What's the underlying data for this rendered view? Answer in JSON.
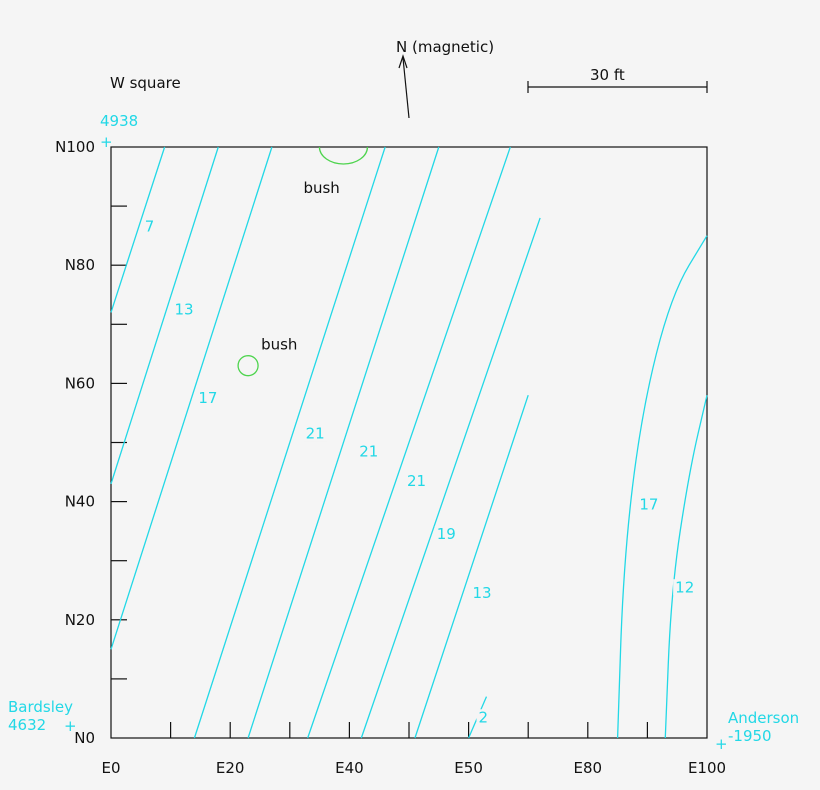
{
  "chart_data": {
    "type": "line",
    "title": "W square",
    "north_label": "N (magnetic)",
    "scale_label": "30 ft",
    "x_ticks": [
      "E0",
      "E20",
      "E40",
      "E50",
      "E80",
      "E100"
    ],
    "y_ticks": [
      "N0",
      "N20",
      "N40",
      "N60",
      "N80",
      "N100"
    ],
    "xlim": [
      0,
      100
    ],
    "ylim": [
      0,
      100
    ],
    "benchmarks": [
      {
        "name": "4938",
        "x": -1,
        "y": 101
      },
      {
        "name": "Bardsley",
        "value": "4632",
        "x": -7,
        "y": 2
      },
      {
        "name": "Anderson",
        "value": "-1950",
        "x": 102,
        "y": -1
      }
    ],
    "features": [
      {
        "name": "bush",
        "x": 23,
        "y": 63,
        "type": "circle-small"
      },
      {
        "name": "bush",
        "x": 39,
        "y": 100,
        "type": "semicircle"
      }
    ],
    "contours": [
      {
        "label": "7",
        "points": [
          [
            0,
            72
          ],
          [
            9,
            100
          ]
        ],
        "label_at": [
          7,
          86
        ]
      },
      {
        "label": "13",
        "points": [
          [
            0,
            43
          ],
          [
            18,
            100
          ]
        ],
        "label_at": [
          12,
          72
        ]
      },
      {
        "label": "17",
        "points": [
          [
            0,
            15
          ],
          [
            27,
            100
          ]
        ],
        "label_at": [
          16,
          57
        ]
      },
      {
        "label": "21",
        "points": [
          [
            14,
            0
          ],
          [
            46,
            100
          ]
        ],
        "label_at": [
          34,
          51
        ]
      },
      {
        "label": "21",
        "points": [
          [
            23,
            0
          ],
          [
            55,
            100
          ]
        ],
        "label_at": [
          43,
          48
        ]
      },
      {
        "label": "21",
        "points": [
          [
            33,
            0
          ],
          [
            67,
            100
          ]
        ],
        "label_at": [
          51,
          43
        ]
      },
      {
        "label": "19",
        "points": [
          [
            42,
            0
          ],
          [
            72,
            88
          ]
        ],
        "label_at": [
          56,
          34
        ]
      },
      {
        "label": "13",
        "points": [
          [
            51,
            0
          ],
          [
            70,
            58
          ]
        ],
        "label_at": [
          62,
          24
        ]
      },
      {
        "label": "2",
        "points": [
          [
            60,
            0
          ],
          [
            63,
            7
          ]
        ],
        "label_at": [
          63,
          3
        ]
      },
      {
        "label": "17",
        "points": [
          [
            85,
            0
          ],
          [
            86,
            30
          ],
          [
            89,
            55
          ],
          [
            94,
            75
          ],
          [
            100,
            85
          ]
        ],
        "label_at": [
          90,
          39
        ]
      },
      {
        "label": "12",
        "points": [
          [
            93,
            0
          ],
          [
            94,
            25
          ],
          [
            97,
            45
          ],
          [
            100,
            58
          ]
        ],
        "label_at": [
          96,
          25
        ]
      }
    ]
  }
}
